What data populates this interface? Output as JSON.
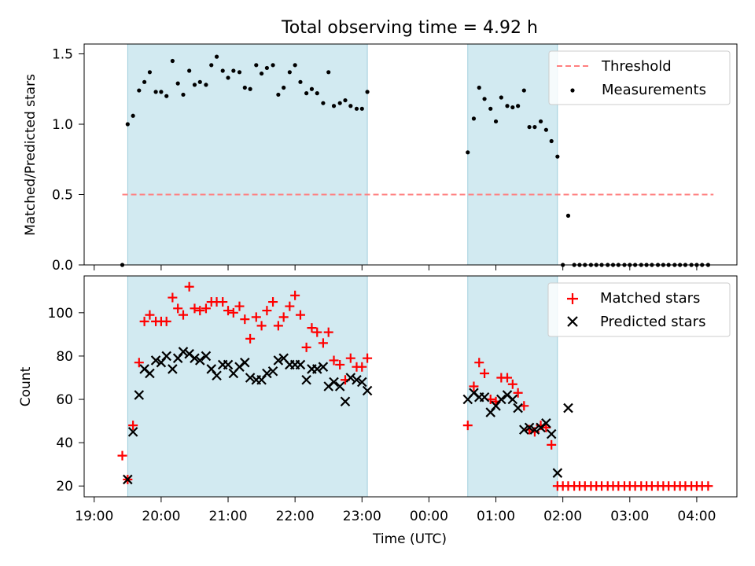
{
  "chart_data": {
    "type": "scatter",
    "title": "Total observing time = 4.92 h",
    "x_axis": {
      "label": "Time (UTC)",
      "tick_labels": [
        "19:00",
        "20:00",
        "21:00",
        "22:00",
        "23:00",
        "00:00",
        "01:00",
        "02:00",
        "03:00",
        "04:00"
      ],
      "tick_hours": [
        19,
        20,
        21,
        22,
        23,
        24,
        25,
        26,
        27,
        28
      ],
      "range_hours": [
        18.85,
        28.6
      ]
    },
    "shaded_windows_hours": [
      [
        19.5,
        23.08
      ],
      [
        24.58,
        25.92
      ]
    ],
    "top_panel": {
      "ylabel": "Matched/Predicted stars",
      "ylim": [
        0,
        1.57
      ],
      "yticks": [
        0.0,
        0.5,
        1.0,
        1.5
      ],
      "ytick_labels": [
        "0.0",
        "0.5",
        "1.0",
        "1.5"
      ],
      "legend": [
        "Threshold",
        "Measurements"
      ],
      "legend_position": "top-right",
      "threshold": {
        "name": "Threshold",
        "y": 0.5,
        "x_range": [
          19.42,
          28.25
        ],
        "color": "#ff7f7f"
      },
      "measurements": {
        "name": "Measurements",
        "color": "#000000",
        "points": [
          [
            19.42,
            0.0
          ],
          [
            19.5,
            1.0
          ],
          [
            19.58,
            1.06
          ],
          [
            19.67,
            1.24
          ],
          [
            19.75,
            1.3
          ],
          [
            19.83,
            1.37
          ],
          [
            19.92,
            1.23
          ],
          [
            20.0,
            1.23
          ],
          [
            20.08,
            1.2
          ],
          [
            20.17,
            1.45
          ],
          [
            20.25,
            1.29
          ],
          [
            20.33,
            1.21
          ],
          [
            20.42,
            1.38
          ],
          [
            20.5,
            1.28
          ],
          [
            20.58,
            1.3
          ],
          [
            20.67,
            1.28
          ],
          [
            20.75,
            1.42
          ],
          [
            20.83,
            1.48
          ],
          [
            20.92,
            1.38
          ],
          [
            21.0,
            1.33
          ],
          [
            21.08,
            1.38
          ],
          [
            21.17,
            1.37
          ],
          [
            21.25,
            1.26
          ],
          [
            21.33,
            1.25
          ],
          [
            21.42,
            1.42
          ],
          [
            21.5,
            1.36
          ],
          [
            21.58,
            1.4
          ],
          [
            21.67,
            1.42
          ],
          [
            21.75,
            1.21
          ],
          [
            21.83,
            1.26
          ],
          [
            21.92,
            1.37
          ],
          [
            22.0,
            1.42
          ],
          [
            22.08,
            1.3
          ],
          [
            22.17,
            1.22
          ],
          [
            22.25,
            1.25
          ],
          [
            22.33,
            1.22
          ],
          [
            22.42,
            1.15
          ],
          [
            22.5,
            1.37
          ],
          [
            22.58,
            1.13
          ],
          [
            22.67,
            1.15
          ],
          [
            22.75,
            1.17
          ],
          [
            22.83,
            1.13
          ],
          [
            22.92,
            1.11
          ],
          [
            23.0,
            1.11
          ],
          [
            23.08,
            1.23
          ],
          [
            24.58,
            0.8
          ],
          [
            24.67,
            1.04
          ],
          [
            24.75,
            1.26
          ],
          [
            24.83,
            1.18
          ],
          [
            24.92,
            1.11
          ],
          [
            25.0,
            1.02
          ],
          [
            25.08,
            1.19
          ],
          [
            25.17,
            1.13
          ],
          [
            25.25,
            1.12
          ],
          [
            25.33,
            1.13
          ],
          [
            25.42,
            1.24
          ],
          [
            25.5,
            0.98
          ],
          [
            25.58,
            0.98
          ],
          [
            25.67,
            1.02
          ],
          [
            25.75,
            0.96
          ],
          [
            25.83,
            0.88
          ],
          [
            25.92,
            0.77
          ],
          [
            26.0,
            0.0
          ],
          [
            26.08,
            0.35
          ],
          [
            26.17,
            0.0
          ],
          [
            26.25,
            0.0
          ],
          [
            26.33,
            0.0
          ],
          [
            26.42,
            0.0
          ],
          [
            26.5,
            0.0
          ],
          [
            26.58,
            0.0
          ],
          [
            26.67,
            0.0
          ],
          [
            26.75,
            0.0
          ],
          [
            26.83,
            0.0
          ],
          [
            26.92,
            0.0
          ],
          [
            27.0,
            0.0
          ],
          [
            27.08,
            0.0
          ],
          [
            27.17,
            0.0
          ],
          [
            27.25,
            0.0
          ],
          [
            27.33,
            0.0
          ],
          [
            27.42,
            0.0
          ],
          [
            27.5,
            0.0
          ],
          [
            27.58,
            0.0
          ],
          [
            27.67,
            0.0
          ],
          [
            27.75,
            0.0
          ],
          [
            27.83,
            0.0
          ],
          [
            27.92,
            0.0
          ],
          [
            28.0,
            0.0
          ],
          [
            28.08,
            0.0
          ],
          [
            28.17,
            0.0
          ]
        ]
      }
    },
    "bottom_panel": {
      "ylabel": "Count",
      "ylim": [
        15,
        117
      ],
      "yticks": [
        20,
        40,
        60,
        80,
        100
      ],
      "ytick_labels": [
        "20",
        "40",
        "60",
        "80",
        "100"
      ],
      "legend": [
        "Matched stars",
        "Predicted stars"
      ],
      "legend_position": "top-right",
      "series": [
        {
          "name": "Matched stars",
          "marker": "+",
          "color": "#ff0000",
          "points": [
            [
              19.42,
              34
            ],
            [
              19.5,
              23
            ],
            [
              19.58,
              48
            ],
            [
              19.67,
              77
            ],
            [
              19.75,
              96
            ],
            [
              19.83,
              99
            ],
            [
              19.92,
              96
            ],
            [
              20.0,
              96
            ],
            [
              20.08,
              96
            ],
            [
              20.17,
              107
            ],
            [
              20.25,
              102
            ],
            [
              20.33,
              99
            ],
            [
              20.42,
              112
            ],
            [
              20.5,
              102
            ],
            [
              20.58,
              101
            ],
            [
              20.67,
              102
            ],
            [
              20.75,
              105
            ],
            [
              20.83,
              105
            ],
            [
              20.92,
              105
            ],
            [
              21.0,
              101
            ],
            [
              21.08,
              100
            ],
            [
              21.17,
              103
            ],
            [
              21.25,
              97
            ],
            [
              21.33,
              88
            ],
            [
              21.42,
              98
            ],
            [
              21.5,
              94
            ],
            [
              21.58,
              101
            ],
            [
              21.67,
              105
            ],
            [
              21.75,
              94
            ],
            [
              21.83,
              98
            ],
            [
              21.92,
              103
            ],
            [
              22.0,
              108
            ],
            [
              22.08,
              99
            ],
            [
              22.17,
              84
            ],
            [
              22.25,
              93
            ],
            [
              22.33,
              91
            ],
            [
              22.42,
              86
            ],
            [
              22.5,
              91
            ],
            [
              22.58,
              78
            ],
            [
              22.67,
              76
            ],
            [
              22.75,
              69
            ],
            [
              22.83,
              79
            ],
            [
              22.92,
              75
            ],
            [
              23.0,
              75
            ],
            [
              23.08,
              79
            ],
            [
              24.58,
              48
            ],
            [
              24.67,
              66
            ],
            [
              24.75,
              77
            ],
            [
              24.83,
              72
            ],
            [
              24.92,
              60
            ],
            [
              25.0,
              59
            ],
            [
              25.08,
              70
            ],
            [
              25.17,
              70
            ],
            [
              25.25,
              67
            ],
            [
              25.33,
              63
            ],
            [
              25.42,
              57
            ],
            [
              25.5,
              46
            ],
            [
              25.58,
              45
            ],
            [
              25.67,
              48
            ],
            [
              25.75,
              47
            ],
            [
              25.83,
              39
            ],
            [
              25.92,
              20
            ],
            [
              26.0,
              20
            ],
            [
              26.08,
              20
            ],
            [
              26.17,
              20
            ],
            [
              26.25,
              20
            ],
            [
              26.33,
              20
            ],
            [
              26.42,
              20
            ],
            [
              26.5,
              20
            ],
            [
              26.58,
              20
            ],
            [
              26.67,
              20
            ],
            [
              26.75,
              20
            ],
            [
              26.83,
              20
            ],
            [
              26.92,
              20
            ],
            [
              27.0,
              20
            ],
            [
              27.08,
              20
            ],
            [
              27.17,
              20
            ],
            [
              27.25,
              20
            ],
            [
              27.33,
              20
            ],
            [
              27.42,
              20
            ],
            [
              27.5,
              20
            ],
            [
              27.58,
              20
            ],
            [
              27.67,
              20
            ],
            [
              27.75,
              20
            ],
            [
              27.83,
              20
            ],
            [
              27.92,
              20
            ],
            [
              28.0,
              20
            ],
            [
              28.08,
              20
            ],
            [
              28.17,
              20
            ]
          ]
        },
        {
          "name": "Predicted stars",
          "marker": "x",
          "color": "#000000",
          "points": [
            [
              19.5,
              23
            ],
            [
              19.58,
              45
            ],
            [
              19.67,
              62
            ],
            [
              19.75,
              74
            ],
            [
              19.83,
              72
            ],
            [
              19.92,
              78
            ],
            [
              20.0,
              77
            ],
            [
              20.08,
              80
            ],
            [
              20.17,
              74
            ],
            [
              20.25,
              79
            ],
            [
              20.33,
              82
            ],
            [
              20.42,
              81
            ],
            [
              20.5,
              79
            ],
            [
              20.58,
              78
            ],
            [
              20.67,
              80
            ],
            [
              20.75,
              74
            ],
            [
              20.83,
              71
            ],
            [
              20.92,
              76
            ],
            [
              21.0,
              76
            ],
            [
              21.08,
              72
            ],
            [
              21.17,
              75
            ],
            [
              21.25,
              77
            ],
            [
              21.33,
              70
            ],
            [
              21.42,
              69
            ],
            [
              21.5,
              69
            ],
            [
              21.58,
              72
            ],
            [
              21.67,
              73
            ],
            [
              21.75,
              78
            ],
            [
              21.83,
              79
            ],
            [
              21.92,
              76
            ],
            [
              22.0,
              76
            ],
            [
              22.08,
              76
            ],
            [
              22.17,
              69
            ],
            [
              22.25,
              74
            ],
            [
              22.33,
              74
            ],
            [
              22.42,
              75
            ],
            [
              22.5,
              66
            ],
            [
              22.58,
              68
            ],
            [
              22.67,
              66
            ],
            [
              22.75,
              59
            ],
            [
              22.83,
              70
            ],
            [
              22.92,
              69
            ],
            [
              23.0,
              68
            ],
            [
              23.08,
              64
            ],
            [
              24.58,
              60
            ],
            [
              24.67,
              63
            ],
            [
              24.75,
              61
            ],
            [
              24.83,
              61
            ],
            [
              24.92,
              54
            ],
            [
              25.0,
              57
            ],
            [
              25.08,
              60
            ],
            [
              25.17,
              62
            ],
            [
              25.25,
              60
            ],
            [
              25.33,
              56
            ],
            [
              25.42,
              46
            ],
            [
              25.5,
              47
            ],
            [
              25.58,
              46
            ],
            [
              25.67,
              47
            ],
            [
              25.75,
              49
            ],
            [
              25.83,
              44
            ],
            [
              25.92,
              26
            ],
            [
              26.08,
              56
            ]
          ]
        }
      ]
    }
  }
}
